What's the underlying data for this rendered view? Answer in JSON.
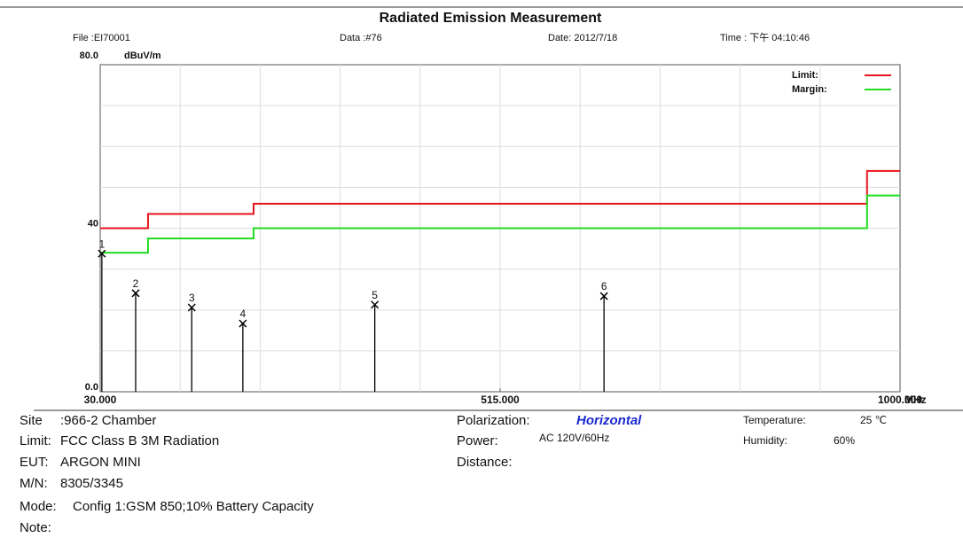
{
  "header": {
    "title": "Radiated Emission Measurement",
    "file": "File :EI70001",
    "data": "Data :#76",
    "date": "Date: 2012/7/18",
    "time": "Time : 下午 04:10:46"
  },
  "chart_data": {
    "type": "line",
    "ylabel": "dBuV/m",
    "xlabel": "MHz",
    "xlim": [
      30,
      1000
    ],
    "xticks": [
      {
        "value": 30,
        "label": "30.000"
      },
      {
        "value": 515,
        "label": "515.000"
      },
      {
        "value": 1000,
        "label": "1000.000"
      }
    ],
    "ylim": [
      0,
      80
    ],
    "yticks": [
      {
        "value": 0,
        "label": "0.0"
      },
      40,
      {
        "value": 80,
        "label": "80.0"
      }
    ],
    "grid": true,
    "legend": "upper right",
    "series": [
      {
        "name": "Limit:",
        "color": "#e8141c",
        "x": [
          30,
          88,
          88,
          216,
          216,
          960,
          960,
          1000
        ],
        "values": [
          40,
          40,
          43.5,
          43.5,
          46,
          46,
          54,
          54
        ]
      },
      {
        "name": "Margin:",
        "color": "#22dd22",
        "x": [
          30,
          88,
          88,
          216,
          216,
          960,
          960,
          1000
        ],
        "values": [
          34,
          34,
          37.5,
          37.5,
          40,
          40,
          48,
          48
        ]
      }
    ],
    "markers": {
      "labels": [
        "1",
        "2",
        "3",
        "4",
        "5",
        "6"
      ],
      "x": [
        32,
        73,
        141,
        203,
        363,
        641
      ],
      "values": [
        33.8,
        24.1,
        20.6,
        16.7,
        21.3,
        23.4
      ]
    }
  },
  "info": [
    {
      "label": "Site",
      "value": ":966-2 Chamber"
    },
    {
      "label": "Polarization:",
      "value": "Horizontal"
    },
    {
      "label": "Temperature:",
      "value": "25 ℃"
    },
    {
      "label": "Limit:",
      "value": "FCC Class B 3M Radiation"
    },
    {
      "label": "Power:",
      "value": "AC 120V/60Hz"
    },
    {
      "label": "Humidity:",
      "value": "60%"
    },
    {
      "label": "EUT:",
      "value": "ARGON MINI"
    },
    {
      "label": "Distance:",
      "value": ""
    },
    {
      "label": "M/N:",
      "value": "8305/3345"
    },
    {
      "label": "Mode:",
      "value": "Config 1:GSM 850;10% Battery Capacity"
    },
    {
      "label": "Note:",
      "value": ""
    }
  ]
}
